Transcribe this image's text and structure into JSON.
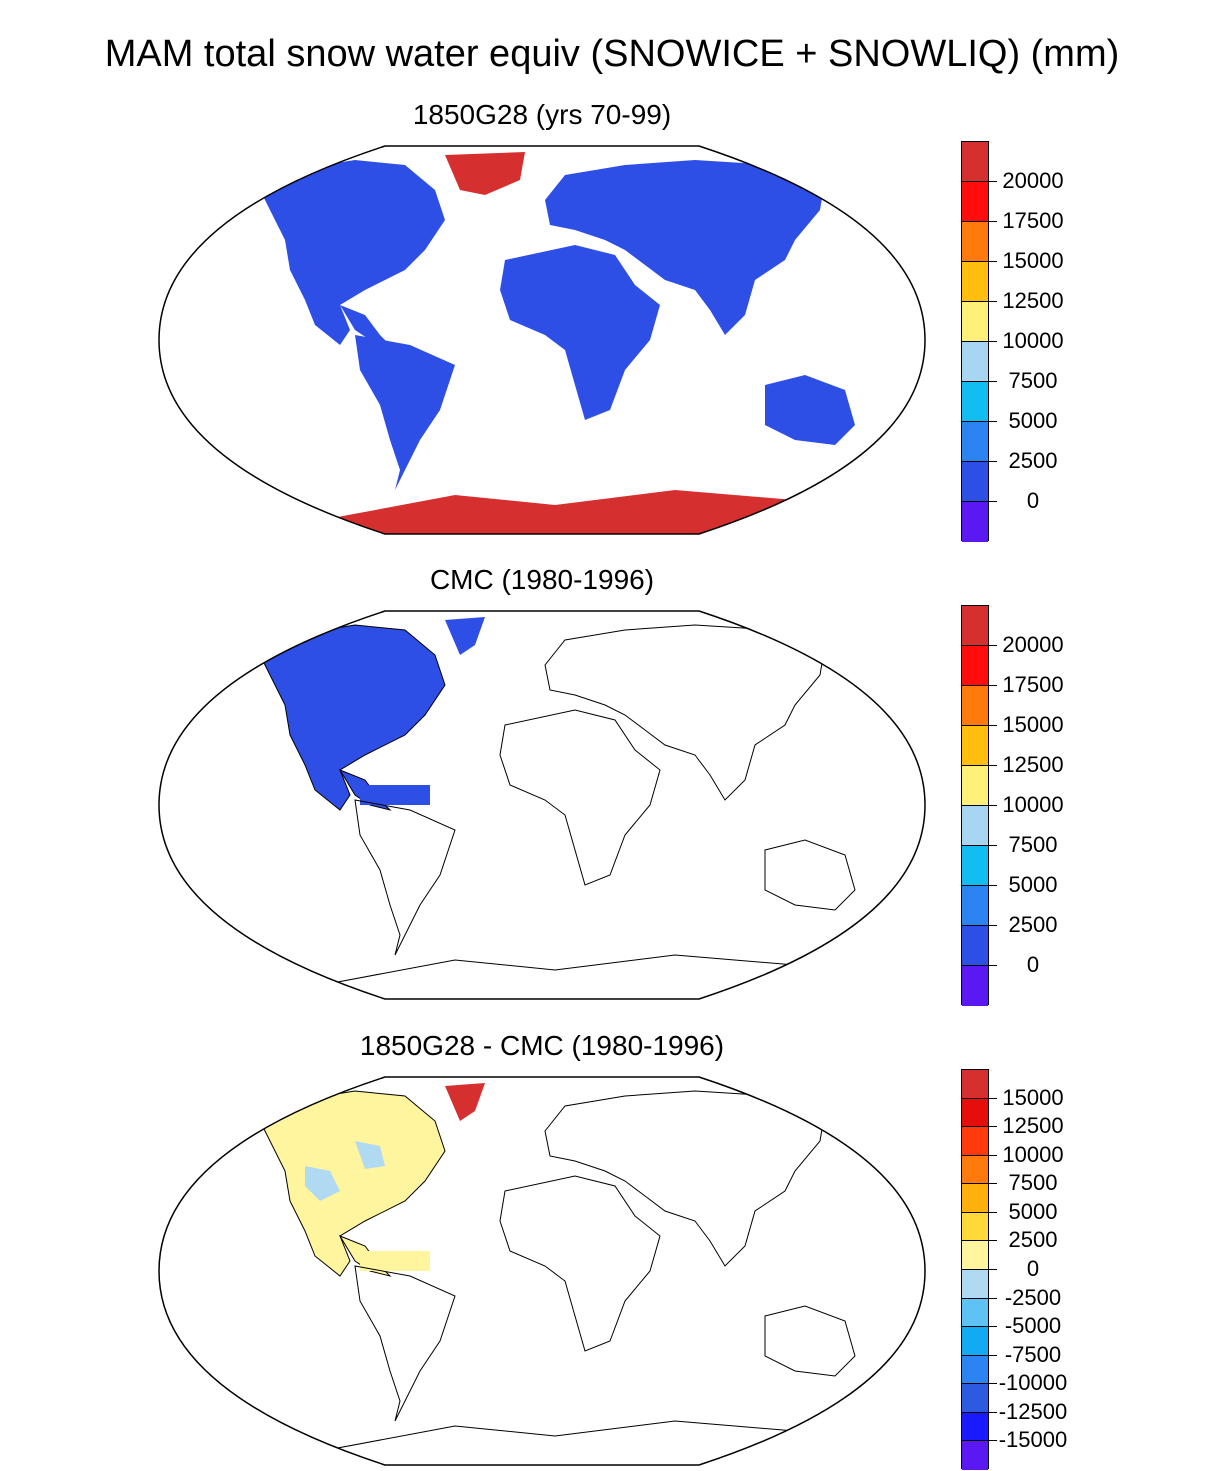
{
  "title": "MAM total snow water equiv (SNOWICE + SNOWLIQ) (mm)",
  "panels": [
    {
      "title": "1850G28 (yrs 70-99)",
      "colorbar": {
        "labels": [
          "20000",
          "17500",
          "15000",
          "12500",
          "10000",
          "7500",
          "5000",
          "2500",
          "0"
        ],
        "colors": [
          "#d62f2f",
          "#ff0d0d",
          "#ff7a0d",
          "#ffbd0d",
          "#fff07a",
          "#a6d6f2",
          "#12bdf2",
          "#2b84f2",
          "#2e4fe6",
          "#5a18f2"
        ]
      },
      "fields": {
        "land_snow": "low",
        "greenland": "high",
        "antarctica": "high"
      }
    },
    {
      "title": "CMC (1980-1996)",
      "colorbar": {
        "labels": [
          "20000",
          "17500",
          "15000",
          "12500",
          "10000",
          "7500",
          "5000",
          "2500",
          "0"
        ],
        "colors": [
          "#d62f2f",
          "#ff0d0d",
          "#ff7a0d",
          "#ffbd0d",
          "#fff07a",
          "#a6d6f2",
          "#12bdf2",
          "#2b84f2",
          "#2e4fe6",
          "#5a18f2"
        ]
      },
      "fields": {
        "north_america": "low"
      }
    },
    {
      "title": "1850G28 - CMC (1980-1996)",
      "colorbar": {
        "labels": [
          "15000",
          "12500",
          "10000",
          "7500",
          "5000",
          "2500",
          "0",
          "-2500",
          "-5000",
          "-7500",
          "-10000",
          "-12500",
          "-15000"
        ],
        "colors": [
          "#d62f2f",
          "#e60d0d",
          "#ff3a0d",
          "#ff7a0d",
          "#ffb00d",
          "#ffd93a",
          "#fff59e",
          "#b0daf2",
          "#5ec3f2",
          "#12aaf2",
          "#2b84f2",
          "#2e5ae0",
          "#1a1aff",
          "#5a18f2"
        ]
      },
      "fields": {
        "north_america": "near-zero",
        "greenland": "high"
      }
    }
  ]
}
